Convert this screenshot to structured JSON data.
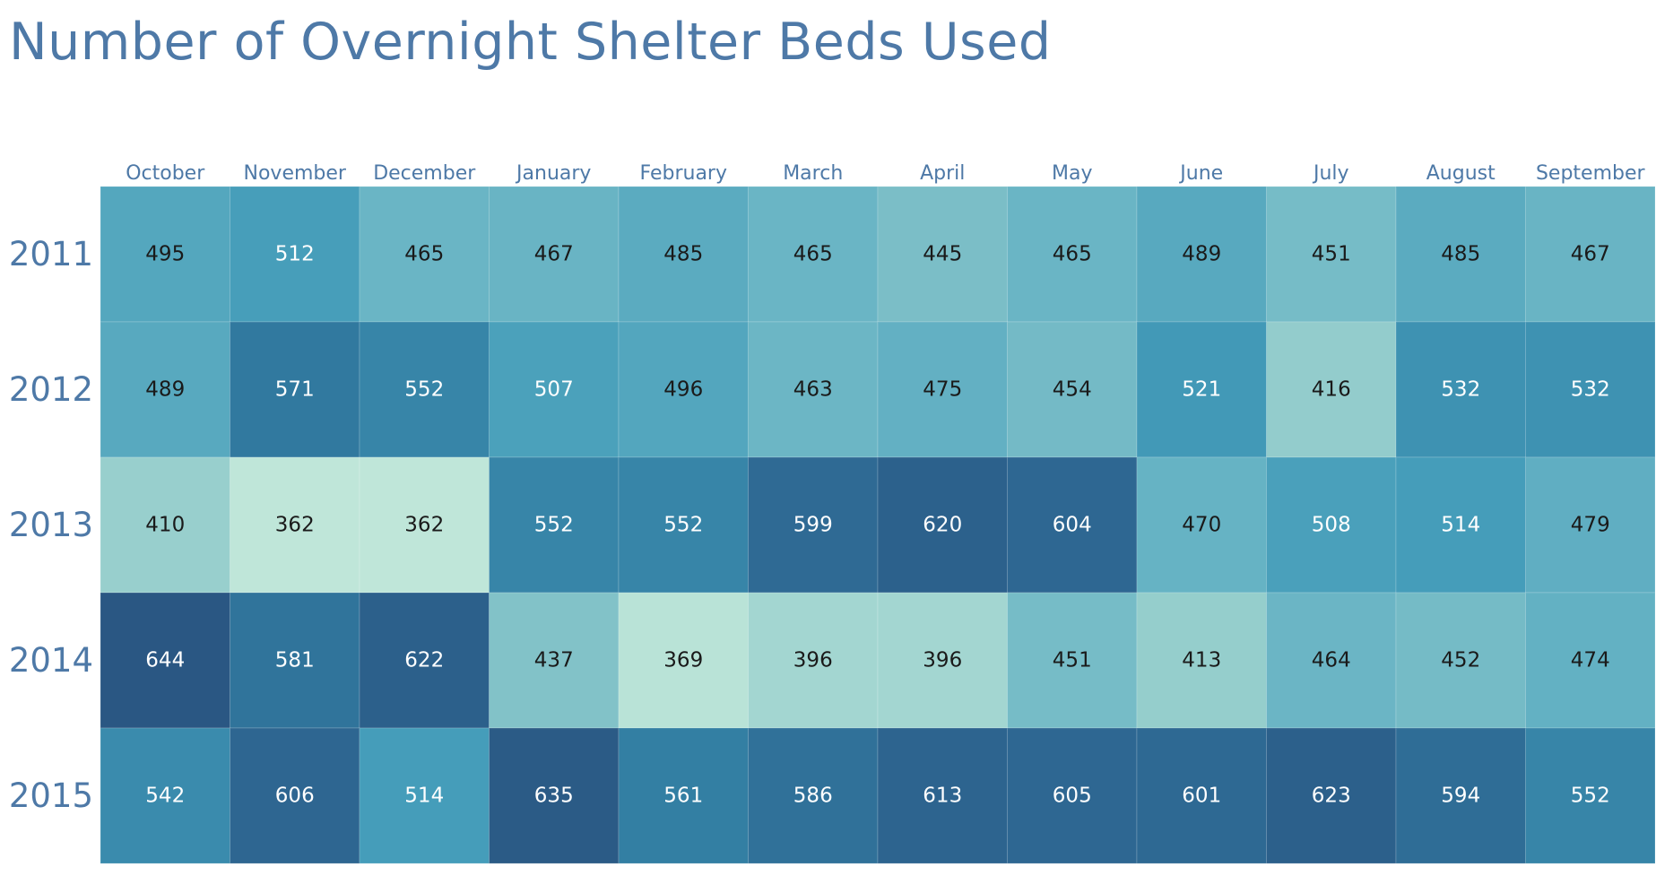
{
  "title": "Number of Overnight Shelter Beds Used",
  "chart_data": {
    "type": "heatmap",
    "title": "Number of Overnight Shelter Beds Used",
    "columns": [
      "October",
      "November",
      "December",
      "January",
      "February",
      "March",
      "April",
      "May",
      "June",
      "July",
      "August",
      "September"
    ],
    "rows": [
      "2011",
      "2012",
      "2013",
      "2014",
      "2015"
    ],
    "values": [
      [
        495,
        512,
        465,
        467,
        485,
        465,
        445,
        465,
        489,
        451,
        485,
        467
      ],
      [
        489,
        571,
        552,
        507,
        496,
        463,
        475,
        454,
        521,
        416,
        532,
        532
      ],
      [
        410,
        362,
        362,
        552,
        552,
        599,
        620,
        604,
        470,
        508,
        514,
        479
      ],
      [
        644,
        581,
        622,
        437,
        369,
        396,
        396,
        451,
        413,
        464,
        452,
        474
      ],
      [
        542,
        606,
        514,
        635,
        561,
        586,
        613,
        605,
        601,
        623,
        594,
        552
      ]
    ],
    "color_scale": {
      "min": 362,
      "max": 644,
      "low_color": "#bfe6d9",
      "high_color": "#2a5783"
    },
    "grid": false,
    "legend": "none"
  }
}
